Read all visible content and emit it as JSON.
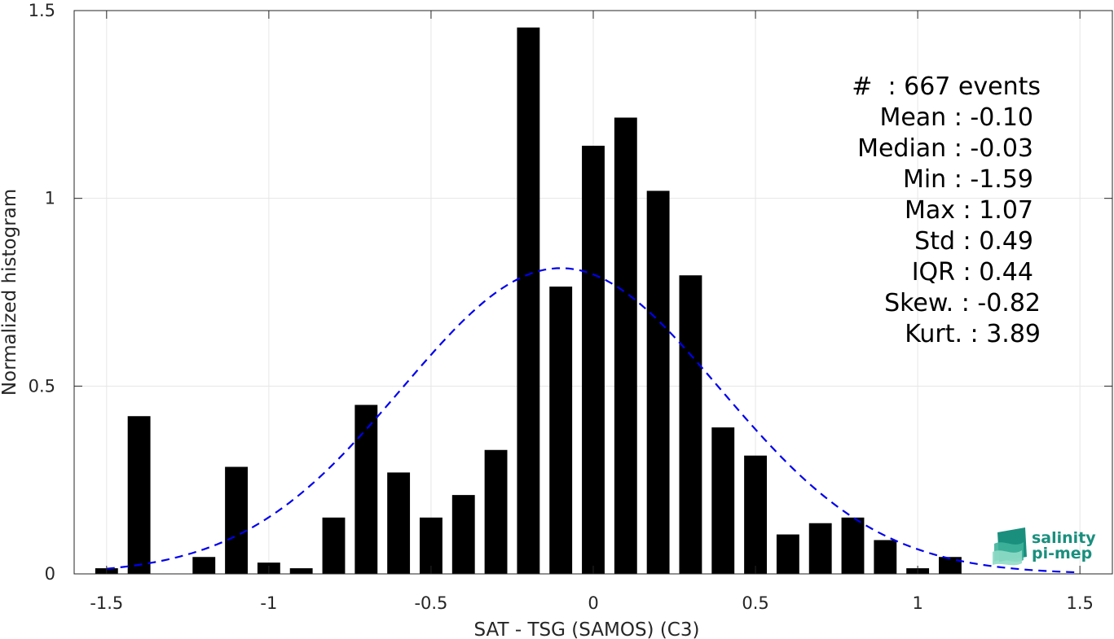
{
  "chart_data": {
    "type": "bar",
    "xlabel": "SAT - TSG (SAMOS) (C3)",
    "ylabel": "Normalized histogram",
    "xlim": [
      -1.6,
      1.6
    ],
    "ylim": [
      0,
      1.5
    ],
    "xticks": [
      -1.5,
      -1,
      -0.5,
      0,
      0.5,
      1,
      1.5
    ],
    "xtick_labels": [
      "-1.5",
      "-1",
      "-0.5",
      "0",
      "0.5",
      "1",
      "1.5"
    ],
    "yticks": [
      0,
      0.5,
      1,
      1.5
    ],
    "ytick_labels": [
      "0",
      "0.5",
      "1",
      "1.5"
    ],
    "grid": true,
    "bin_width": 0.1,
    "bar_width": 0.07,
    "bar_color": "#000000",
    "bins": [
      {
        "x": -1.5,
        "y": 0.015
      },
      {
        "x": -1.4,
        "y": 0.42
      },
      {
        "x": -1.3,
        "y": 0.0
      },
      {
        "x": -1.2,
        "y": 0.045
      },
      {
        "x": -1.1,
        "y": 0.285
      },
      {
        "x": -1.0,
        "y": 0.03
      },
      {
        "x": -0.9,
        "y": 0.015
      },
      {
        "x": -0.8,
        "y": 0.15
      },
      {
        "x": -0.7,
        "y": 0.45
      },
      {
        "x": -0.6,
        "y": 0.27
      },
      {
        "x": -0.5,
        "y": 0.15
      },
      {
        "x": -0.4,
        "y": 0.21
      },
      {
        "x": -0.3,
        "y": 0.33
      },
      {
        "x": -0.2,
        "y": 1.455
      },
      {
        "x": -0.1,
        "y": 0.765
      },
      {
        "x": 0.0,
        "y": 1.14
      },
      {
        "x": 0.1,
        "y": 1.215
      },
      {
        "x": 0.2,
        "y": 1.02
      },
      {
        "x": 0.3,
        "y": 0.795
      },
      {
        "x": 0.4,
        "y": 0.39
      },
      {
        "x": 0.5,
        "y": 0.315
      },
      {
        "x": 0.6,
        "y": 0.105
      },
      {
        "x": 0.7,
        "y": 0.135
      },
      {
        "x": 0.8,
        "y": 0.15
      },
      {
        "x": 0.9,
        "y": 0.09
      },
      {
        "x": 1.0,
        "y": 0.015
      },
      {
        "x": 1.1,
        "y": 0.045
      }
    ],
    "fit_curve": {
      "type": "normal",
      "mean": -0.1,
      "std": 0.49,
      "x_range": [
        -1.5,
        1.5
      ],
      "style": "dashed",
      "color": "#0000ee"
    }
  },
  "stats": [
    {
      "label": "#  : 667 events"
    },
    {
      "label": "Mean : -0.10"
    },
    {
      "label": "Median : -0.03"
    },
    {
      "label": "Min : -1.59"
    },
    {
      "label": "Max : 1.07"
    },
    {
      "label": "Std : 0.49"
    },
    {
      "label": "IQR : 0.44"
    },
    {
      "label": "Skew. : -0.82"
    },
    {
      "label": "Kurt. : 3.89"
    }
  ],
  "logo": {
    "line1": "salinity",
    "line2": "pi-mep",
    "color_dark": "#1a8f7e",
    "color_light": "#52c6a8"
  }
}
